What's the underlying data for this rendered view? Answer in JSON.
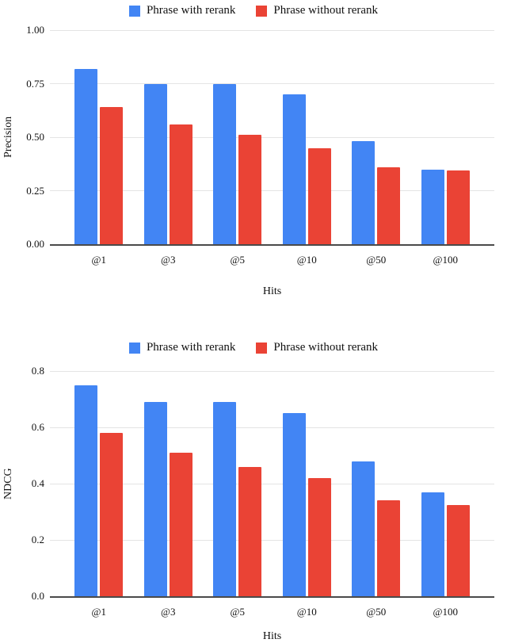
{
  "colors": {
    "with_rerank": "#4285f4",
    "without_rerank": "#ea4335",
    "gridline": "#e4e4e4",
    "axis_line": "#4a4a4a",
    "text": "#111111"
  },
  "chart_data": [
    {
      "type": "bar",
      "panel": "top",
      "categories": [
        "@1",
        "@3",
        "@5",
        "@10",
        "@50",
        "@100"
      ],
      "series": [
        {
          "name": "Phrase with rerank",
          "color": "#4285f4",
          "values": [
            0.82,
            0.75,
            0.75,
            0.7,
            0.48,
            0.35
          ]
        },
        {
          "name": "Phrase without rerank",
          "color": "#ea4335",
          "values": [
            0.64,
            0.56,
            0.51,
            0.45,
            0.36,
            0.345
          ]
        }
      ],
      "xlabel": "Hits",
      "ylabel": "Precision",
      "ylim": [
        0,
        1.0
      ],
      "ytick_step": 0.25,
      "ytick_labels": [
        "0.00",
        "0.25",
        "0.50",
        "0.75",
        "1.00"
      ],
      "grid": true,
      "legend_position": "top-center"
    },
    {
      "type": "bar",
      "panel": "bottom",
      "categories": [
        "@1",
        "@3",
        "@5",
        "@10",
        "@50",
        "@100"
      ],
      "series": [
        {
          "name": "Phrase with rerank",
          "color": "#4285f4",
          "values": [
            0.75,
            0.69,
            0.69,
            0.65,
            0.48,
            0.37
          ]
        },
        {
          "name": "Phrase without rerank",
          "color": "#ea4335",
          "values": [
            0.58,
            0.51,
            0.46,
            0.42,
            0.34,
            0.325
          ]
        }
      ],
      "xlabel": "Hits",
      "ylabel": "NDCG",
      "ylim": [
        0,
        0.8
      ],
      "ytick_step": 0.2,
      "ytick_labels": [
        "0.0",
        "0.2",
        "0.4",
        "0.6",
        "0.8"
      ],
      "grid": true,
      "legend_position": "top-center"
    }
  ]
}
